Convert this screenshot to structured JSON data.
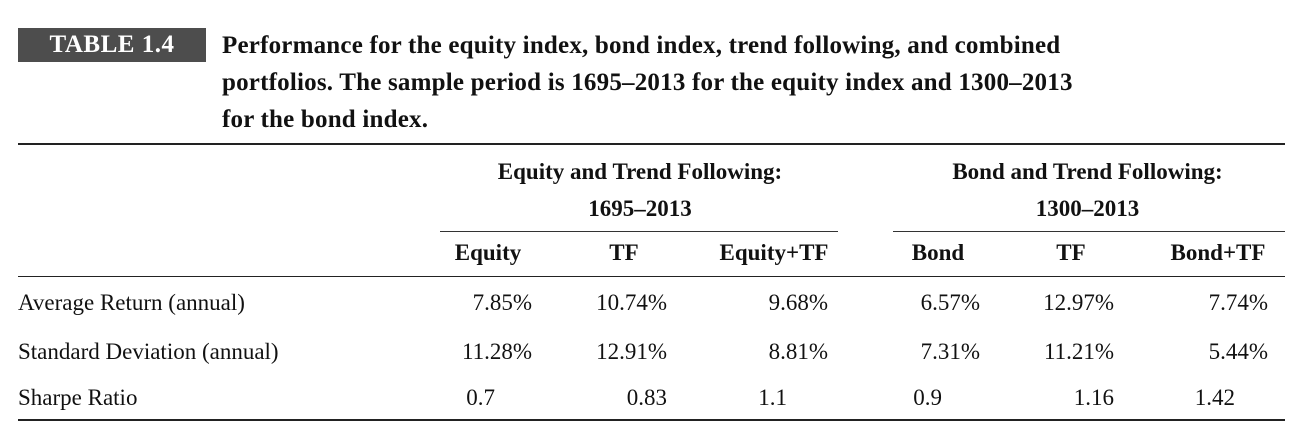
{
  "table_label": "TABLE 1.4",
  "caption": {
    "line1": "Performance for the equity index, bond index, trend following, and combined",
    "line2": "portfolios. The sample period is 1695–2013 for the equity index and 1300–2013",
    "line3": "for the bond index."
  },
  "groups": [
    {
      "title": "Equity and Trend Following:",
      "period": "1695–2013"
    },
    {
      "title": "Bond and Trend Following:",
      "period": "1300–2013"
    }
  ],
  "columns": [
    "Equity",
    "TF",
    "Equity+TF",
    "Bond",
    "TF",
    "Bond+TF"
  ],
  "rows": [
    {
      "label": "Average Return (annual)",
      "values": [
        "7.85%",
        "10.74%",
        "9.68%",
        "6.57%",
        "12.97%",
        "7.74%"
      ]
    },
    {
      "label": "Standard Deviation (annual)",
      "values": [
        "11.28%",
        "12.91%",
        "8.81%",
        "7.31%",
        "11.21%",
        "5.44%"
      ]
    },
    {
      "label": "Sharpe Ratio",
      "values": [
        "0.7",
        "0.83",
        "1.1",
        "0.9",
        "1.16",
        "1.42"
      ]
    }
  ]
}
